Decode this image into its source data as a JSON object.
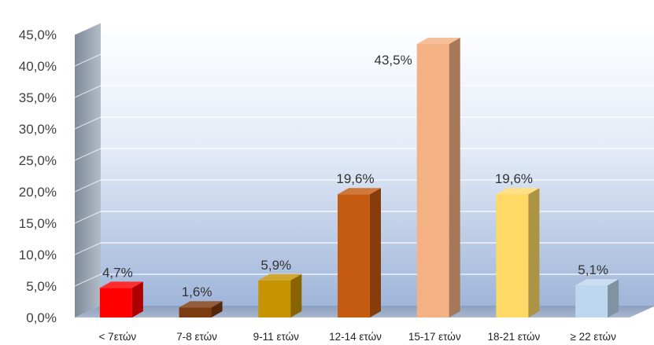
{
  "chart_data": {
    "type": "bar",
    "style": "3d-column",
    "categories": [
      "< 7ετών",
      "7-8 ετών",
      "9-11 ετών",
      "12-14 ετών",
      "15-17 ετών",
      "18-21 ετών",
      "≥ 22 ετών"
    ],
    "values": [
      4.7,
      1.6,
      5.9,
      19.6,
      43.5,
      19.6,
      5.1
    ],
    "value_labels": [
      "4,7%",
      "1,6%",
      "5,9%",
      "19,6%",
      "43,5%",
      "19,6%",
      "5,1%"
    ],
    "bar_colors": [
      "#ff0000",
      "#7b3a10",
      "#c79300",
      "#c55a11",
      "#f4b183",
      "#ffd966",
      "#bdd7ee"
    ],
    "title": "",
    "xlabel": "",
    "ylabel": "",
    "ylim": [
      0,
      45
    ],
    "yticks": [
      0,
      5,
      10,
      15,
      20,
      25,
      30,
      35,
      40,
      45
    ],
    "ytick_labels": [
      "0,0%",
      "5,0%",
      "10,0%",
      "15,0%",
      "20,0%",
      "25,0%",
      "30,0%",
      "35,0%",
      "40,0%",
      "45,0%"
    ],
    "grid": true,
    "legend": "none"
  }
}
